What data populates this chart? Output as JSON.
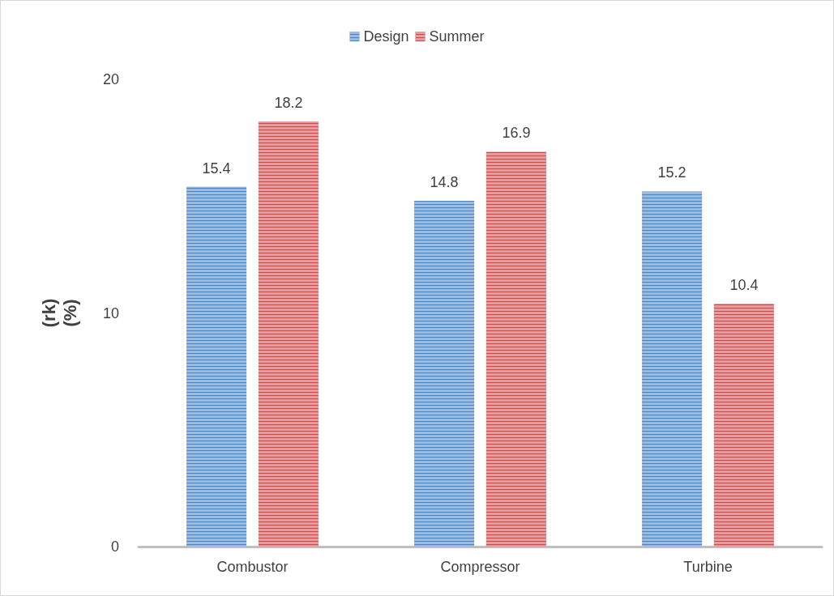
{
  "chart_data": {
    "type": "bar",
    "ylabel": "(rk)\n(%)",
    "categories": [
      "Combustor",
      "Compressor",
      "Turbine"
    ],
    "series": [
      {
        "name": "Design",
        "color": "#4f81bd",
        "values": [
          15.4,
          14.8,
          15.2
        ]
      },
      {
        "name": "Summer",
        "color": "#c0504d",
        "values": [
          18.2,
          16.9,
          10.4
        ]
      }
    ],
    "ylim": [
      0,
      20
    ],
    "yticks": [
      0,
      10,
      20
    ],
    "grid": false,
    "legend": "top",
    "data_labels": true
  }
}
